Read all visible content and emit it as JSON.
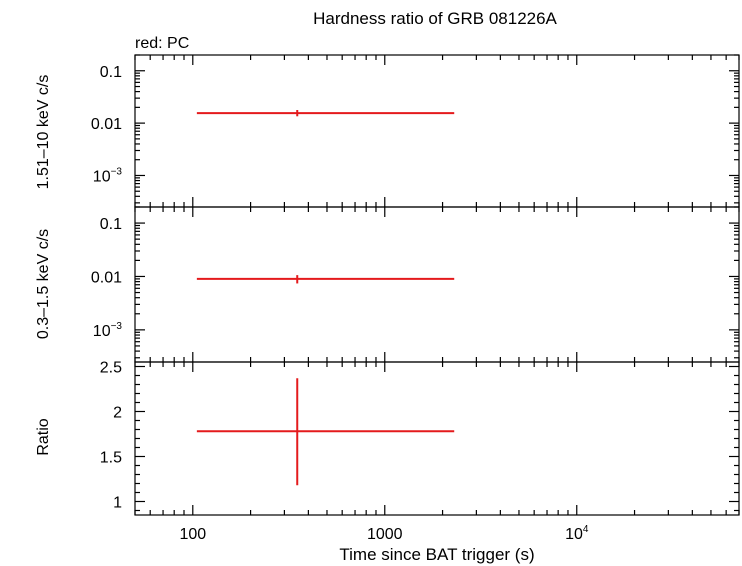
{
  "colors": {
    "series": "#e41a1c",
    "axis": "#000000",
    "background": "#ffffff"
  },
  "chart_data": {
    "type": "scatter",
    "title": "Hardness ratio of GRB 081226A",
    "legend_note": "red: PC",
    "xlabel": "Time since BAT trigger (s)",
    "xscale": "log",
    "xlim": [
      50,
      70000
    ],
    "x_ticks": [
      {
        "value": 100,
        "label": "100",
        "sup": ""
      },
      {
        "value": 1000,
        "label": "1000",
        "sup": ""
      },
      {
        "value": 10000,
        "label": "10",
        "sup": "4"
      }
    ],
    "panels": [
      {
        "id": "hard",
        "ylabel": "1.51–10 keV c/s",
        "yscale": "log",
        "ylim": [
          0.00025,
          0.2
        ],
        "y_ticks": [
          {
            "value": 0.1,
            "label": "0.1",
            "sup": ""
          },
          {
            "value": 0.01,
            "label": "0.01",
            "sup": ""
          },
          {
            "value": 0.001,
            "label": "10",
            "sup": "−3"
          }
        ],
        "points": [
          {
            "x": 350,
            "x_lo": 105,
            "x_hi": 2300,
            "y": 0.0155,
            "y_lo": 0.0135,
            "y_hi": 0.0178
          }
        ]
      },
      {
        "id": "soft",
        "ylabel": "0.3–1.5 keV c/s",
        "yscale": "log",
        "ylim": [
          0.00025,
          0.2
        ],
        "y_ticks": [
          {
            "value": 0.1,
            "label": "0.1",
            "sup": ""
          },
          {
            "value": 0.01,
            "label": "0.01",
            "sup": ""
          },
          {
            "value": 0.001,
            "label": "10",
            "sup": "−3"
          }
        ],
        "points": [
          {
            "x": 350,
            "x_lo": 105,
            "x_hi": 2300,
            "y": 0.009,
            "y_lo": 0.0074,
            "y_hi": 0.0106
          }
        ]
      },
      {
        "id": "ratio",
        "ylabel": "Ratio",
        "yscale": "linear",
        "ylim": [
          0.85,
          2.55
        ],
        "y_ticks": [
          {
            "value": 1,
            "label": "1",
            "sup": ""
          },
          {
            "value": 1.5,
            "label": "1.5",
            "sup": ""
          },
          {
            "value": 2,
            "label": "2",
            "sup": ""
          },
          {
            "value": 2.5,
            "label": "2.5",
            "sup": ""
          }
        ],
        "points": [
          {
            "x": 350,
            "x_lo": 105,
            "x_hi": 2300,
            "y": 1.78,
            "y_lo": 1.18,
            "y_hi": 2.37
          }
        ]
      }
    ]
  }
}
